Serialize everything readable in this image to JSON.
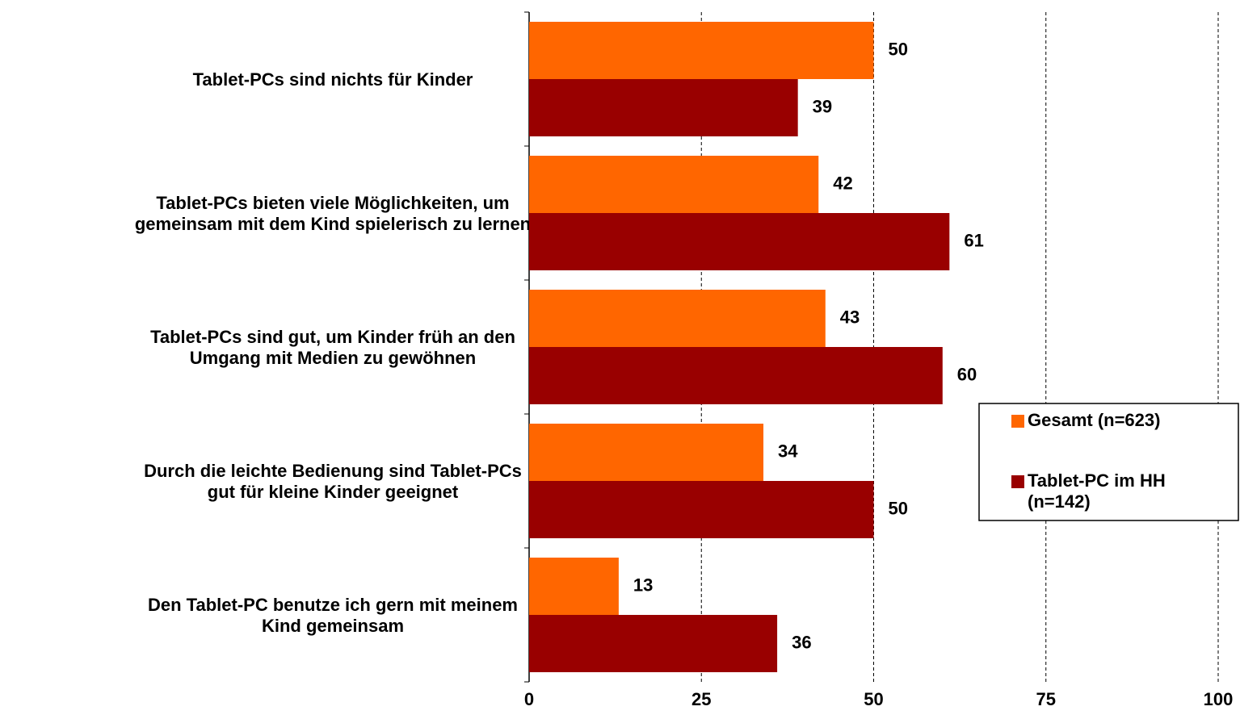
{
  "chart_data": {
    "type": "hbar",
    "categories": [
      "Tablet-PCs sind nichts für Kinder",
      "Tablet-PCs bieten viele Möglichkeiten, um\ngemeinsam mit dem Kind spielerisch zu lernen",
      "Tablet-PCs sind gut, um Kinder früh an den\nUmgang mit Medien zu gewöhnen",
      "Durch die leichte Bedienung sind Tablet-PCs\ngut für kleine Kinder geeignet",
      "Den Tablet-PC benutze ich gern mit meinem\nKind gemeinsam"
    ],
    "series": [
      {
        "name": "Gesamt (n=623)",
        "color": "#ff6600",
        "values": [
          50,
          42,
          43,
          34,
          13
        ]
      },
      {
        "name": "Tablet-PC im HH\n(n=142)",
        "color": "#990000",
        "values": [
          39,
          61,
          60,
          50,
          36
        ]
      }
    ],
    "xlim": [
      0,
      100
    ],
    "xticks": [
      0,
      25,
      50,
      75,
      100
    ],
    "grid": true,
    "legend": "right"
  }
}
